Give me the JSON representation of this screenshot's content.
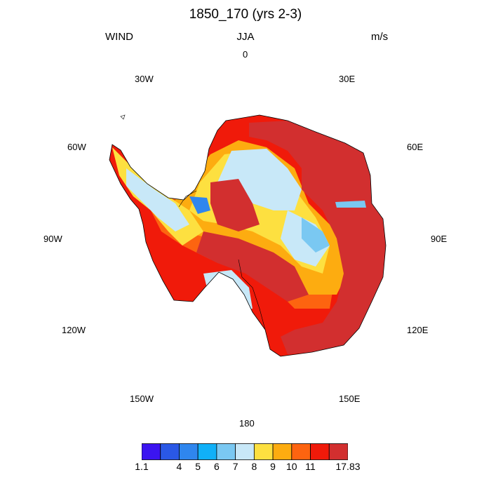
{
  "title": "1850_170 (yrs 2-3)",
  "variable": "WIND",
  "season": "JJA",
  "units": "m/s",
  "longitude_labels": {
    "lon_0": "0",
    "lon_30e": "30E",
    "lon_60e": "60E",
    "lon_90e": "90E",
    "lon_120e": "120E",
    "lon_150e": "150E",
    "lon_180": "180",
    "lon_150w": "150W",
    "lon_120w": "120W",
    "lon_90w": "90W",
    "lon_60w": "60W",
    "lon_30w": "30W"
  },
  "colorbar": {
    "colors": [
      "#3b14f0",
      "#2a58e6",
      "#2f86ee",
      "#10b0f8",
      "#7ac8f2",
      "#c8e8f8",
      "#fde040",
      "#fdac10",
      "#fd6410",
      "#f01a0a",
      "#d22f2f"
    ],
    "labels": [
      "1.1",
      "4",
      "5",
      "6",
      "7",
      "8",
      "9",
      "10",
      "11",
      "17.83"
    ]
  },
  "map": {
    "projection": "south polar stereographic",
    "continent": "Antarctica",
    "level_colors": {
      "strongest": "#d22f2f",
      "very_high": "#f01a0a",
      "high": "#fd6410",
      "mid_high": "#fdac10",
      "mid": "#fde040",
      "low": "#c8e8f8",
      "lower": "#7ac8f2",
      "lowest": "#2f86ee"
    }
  }
}
